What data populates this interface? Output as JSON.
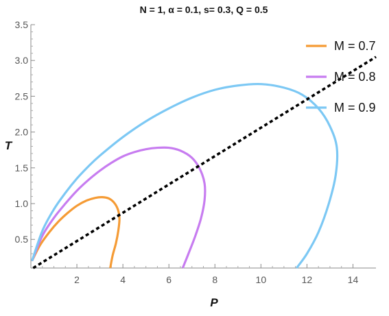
{
  "chart_data": {
    "type": "line",
    "title": "N = 1, α = 0.1, s= 0.3, Q = 0.5",
    "xlabel": "P",
    "ylabel": "T",
    "xlim": [
      0,
      15
    ],
    "ylim": [
      0.1,
      3.5
    ],
    "xticks": [
      2,
      4,
      6,
      8,
      10,
      12,
      14
    ],
    "yticks": [
      0.5,
      1.0,
      1.5,
      2.0,
      2.5,
      3.0,
      3.5
    ],
    "grid": false,
    "legend_position": "top-right",
    "series": [
      {
        "name": "M = 0.7",
        "color": "#F59B35",
        "points": [
          [
            0.05,
            0.2
          ],
          [
            0.4,
            0.42
          ],
          [
            0.8,
            0.6
          ],
          [
            1.2,
            0.75
          ],
          [
            1.6,
            0.87
          ],
          [
            2.0,
            0.97
          ],
          [
            2.4,
            1.04
          ],
          [
            2.8,
            1.08
          ],
          [
            3.1,
            1.09
          ],
          [
            3.4,
            1.07
          ],
          [
            3.65,
            1.0
          ],
          [
            3.8,
            0.9
          ],
          [
            3.85,
            0.78
          ],
          [
            3.8,
            0.62
          ],
          [
            3.7,
            0.45
          ],
          [
            3.55,
            0.27
          ],
          [
            3.45,
            0.1
          ]
        ]
      },
      {
        "name": "M = 0.8",
        "color": "#C77CF0",
        "points": [
          [
            0.05,
            0.2
          ],
          [
            0.5,
            0.55
          ],
          [
            1.0,
            0.8
          ],
          [
            1.5,
            1.0
          ],
          [
            2.0,
            1.18
          ],
          [
            2.5,
            1.33
          ],
          [
            3.0,
            1.46
          ],
          [
            3.5,
            1.57
          ],
          [
            4.0,
            1.66
          ],
          [
            4.5,
            1.72
          ],
          [
            5.0,
            1.76
          ],
          [
            5.5,
            1.78
          ],
          [
            6.0,
            1.78
          ],
          [
            6.5,
            1.74
          ],
          [
            7.0,
            1.64
          ],
          [
            7.35,
            1.48
          ],
          [
            7.55,
            1.28
          ],
          [
            7.55,
            1.05
          ],
          [
            7.4,
            0.8
          ],
          [
            7.15,
            0.55
          ],
          [
            6.85,
            0.3
          ],
          [
            6.6,
            0.1
          ]
        ]
      },
      {
        "name": "M = 0.9",
        "color": "#7CC8F4",
        "points": [
          [
            0.05,
            0.2
          ],
          [
            0.5,
            0.62
          ],
          [
            1.0,
            0.92
          ],
          [
            1.5,
            1.15
          ],
          [
            2.0,
            1.35
          ],
          [
            2.5,
            1.52
          ],
          [
            3.0,
            1.67
          ],
          [
            4.0,
            1.93
          ],
          [
            5.0,
            2.15
          ],
          [
            6.0,
            2.33
          ],
          [
            7.0,
            2.48
          ],
          [
            8.0,
            2.59
          ],
          [
            9.0,
            2.65
          ],
          [
            10.0,
            2.67
          ],
          [
            11.0,
            2.62
          ],
          [
            11.8,
            2.52
          ],
          [
            12.5,
            2.33
          ],
          [
            13.0,
            2.08
          ],
          [
            13.3,
            1.78
          ],
          [
            13.25,
            1.4
          ],
          [
            12.95,
            1.0
          ],
          [
            12.5,
            0.6
          ],
          [
            12.0,
            0.3
          ],
          [
            11.55,
            0.1
          ]
        ]
      },
      {
        "name": "",
        "color": "#000000",
        "dashed": true,
        "points": [
          [
            0.1,
            0.1
          ],
          [
            15,
            3.05
          ]
        ]
      }
    ]
  }
}
